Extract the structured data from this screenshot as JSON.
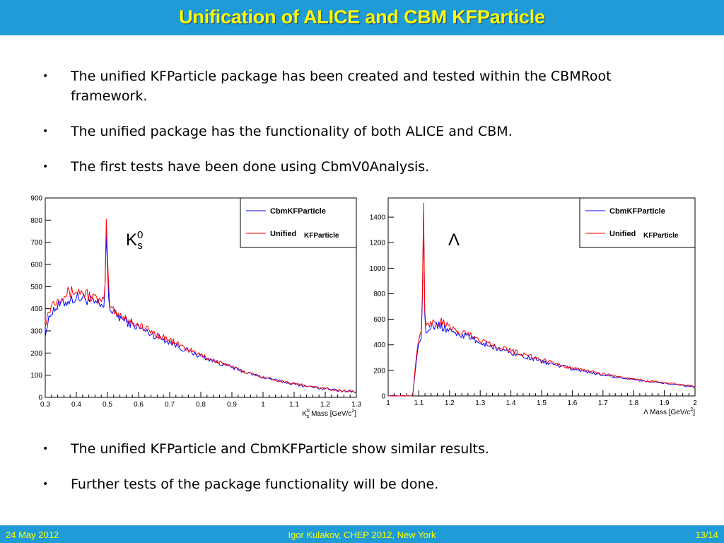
{
  "slide": {
    "title": "Unification of ALICE and CBM KFParticle",
    "bullets_top": [
      "The unified KFParticle package has been created and tested within the CBMRoot framework.",
      "The unified package has the functionality of both ALICE and CBM.",
      "The first tests have been done using CbmV0Analysis."
    ],
    "bullets_bottom": [
      "The unified KFParticle and CbmKFParticle show similar results.",
      "Further tests of the package functionality will be done."
    ],
    "bullet_glyph": "•"
  },
  "labels": {
    "k0s_main": "K",
    "k0s_sup": "0",
    "k0s_sub": "s",
    "lambda": "Λ"
  },
  "footer": {
    "date": "24 May 2012",
    "center": "Igor Kulakov, CHEP 2012, New York",
    "page": "13/14"
  },
  "colors": {
    "bar": "#1f9bd8",
    "title_text": "#ffff00",
    "cbm_series": "#0000ff",
    "unified_series": "#ff0000"
  },
  "chart_data": [
    {
      "type": "line",
      "xlabel_main": "K",
      "xlabel_sup": "0",
      "xlabel_sub": "s",
      "xlabel_rest": " Mass [GeV/c",
      "xlabel_sup2": "2",
      "xlabel_end": "]",
      "xlim": [
        0.3,
        1.3
      ],
      "ylim": [
        0,
        900
      ],
      "xticks": [
        "0.3",
        "0.4",
        "0.5",
        "0.6",
        "0.7",
        "0.8",
        "0.9",
        "1",
        "1.1",
        "1.2",
        "1.3"
      ],
      "yticks": [
        "0",
        "100",
        "200",
        "300",
        "400",
        "500",
        "600",
        "700",
        "800",
        "900"
      ],
      "legend": [
        "CbmKFParticle",
        "Unified",
        "KFParticle"
      ],
      "legend_position": "top-right",
      "series": [
        {
          "name": "CbmKFParticle",
          "color": "#0000ff",
          "x": [
            0.3,
            0.32,
            0.35,
            0.38,
            0.4,
            0.43,
            0.46,
            0.48,
            0.49,
            0.495,
            0.497,
            0.5,
            0.505,
            0.51,
            0.55,
            0.6,
            0.65,
            0.7,
            0.75,
            0.8,
            0.85,
            0.9,
            0.95,
            1.0,
            1.05,
            1.1,
            1.15,
            1.2,
            1.25,
            1.3
          ],
          "y": [
            290,
            390,
            420,
            440,
            450,
            445,
            425,
            410,
            405,
            600,
            830,
            600,
            420,
            390,
            350,
            315,
            280,
            250,
            215,
            185,
            160,
            135,
            110,
            90,
            75,
            60,
            48,
            38,
            30,
            25
          ]
        },
        {
          "name": "Unified KFParticle",
          "color": "#ff0000",
          "x": [
            0.3,
            0.32,
            0.35,
            0.38,
            0.4,
            0.43,
            0.46,
            0.48,
            0.49,
            0.495,
            0.497,
            0.5,
            0.505,
            0.51,
            0.55,
            0.6,
            0.65,
            0.7,
            0.75,
            0.8,
            0.85,
            0.9,
            0.95,
            1.0,
            1.05,
            1.1,
            1.15,
            1.2,
            1.25,
            1.3
          ],
          "y": [
            340,
            420,
            460,
            475,
            480,
            470,
            445,
            430,
            425,
            650,
            860,
            640,
            440,
            405,
            365,
            325,
            290,
            258,
            222,
            190,
            163,
            137,
            112,
            92,
            76,
            62,
            49,
            39,
            31,
            26
          ]
        }
      ]
    },
    {
      "type": "line",
      "xlabel_main": "Λ",
      "xlabel_rest": " Mass [GeV/c",
      "xlabel_sup2": "2",
      "xlabel_end": "]",
      "xlim": [
        1,
        2
      ],
      "ylim": [
        0,
        1550
      ],
      "xticks": [
        "1",
        "1.1",
        "1.2",
        "1.3",
        "1.4",
        "1.5",
        "1.6",
        "1.7",
        "1.8",
        "1.9",
        "2"
      ],
      "yticks": [
        "0",
        "200",
        "400",
        "600",
        "800",
        "1000",
        "1200",
        "1400"
      ],
      "legend": [
        "CbmKFParticle",
        "Unified",
        "KFParticle"
      ],
      "legend_position": "top-right",
      "series": [
        {
          "name": "CbmKFParticle",
          "color": "#0000ff",
          "x": [
            1.0,
            1.07,
            1.08,
            1.09,
            1.1,
            1.11,
            1.113,
            1.115,
            1.117,
            1.12,
            1.14,
            1.17,
            1.2,
            1.25,
            1.3,
            1.4,
            1.5,
            1.6,
            1.7,
            1.8,
            1.9,
            2.0
          ],
          "y": [
            0,
            0,
            0,
            250,
            420,
            480,
            1100,
            1480,
            1100,
            520,
            540,
            550,
            510,
            470,
            420,
            340,
            270,
            210,
            165,
            125,
            100,
            70
          ]
        },
        {
          "name": "Unified KFParticle",
          "color": "#ff0000",
          "x": [
            1.0,
            1.07,
            1.08,
            1.09,
            1.1,
            1.11,
            1.113,
            1.115,
            1.117,
            1.12,
            1.14,
            1.17,
            1.2,
            1.25,
            1.3,
            1.4,
            1.5,
            1.6,
            1.7,
            1.8,
            1.9,
            2.0
          ],
          "y": [
            0,
            0,
            0,
            280,
            450,
            510,
            1150,
            1520,
            1150,
            550,
            575,
            580,
            535,
            490,
            440,
            355,
            282,
            220,
            172,
            130,
            104,
            74
          ]
        }
      ]
    }
  ]
}
